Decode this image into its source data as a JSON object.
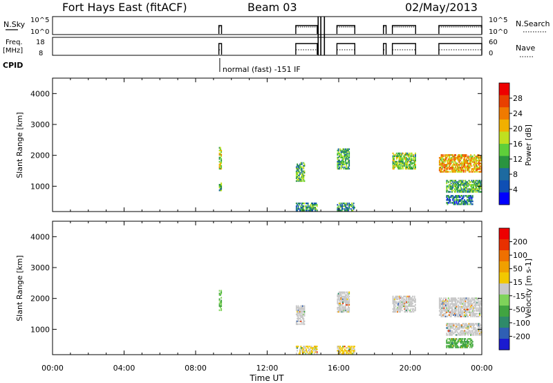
{
  "header": {
    "station": "Fort Hays East (fitACF)",
    "beam": "Beam 03",
    "date": "02/May/2013"
  },
  "status_panels": {
    "nsky": {
      "label": "N.Sky",
      "ticks": [
        "10^5",
        "10^0"
      ],
      "right_ticks": [
        "10^5",
        "10^0"
      ],
      "right_label": "N.Search"
    },
    "freq": {
      "label_top": "Freq.",
      "label_bottom": "[MHz]",
      "ticks": [
        "18",
        "8"
      ],
      "right_ticks": [
        "60",
        "0"
      ],
      "right_label": "Nave"
    },
    "cpid": {
      "label": "CPID",
      "mode_text": "normal (fast) -151 IF",
      "mode_hour": 9.35
    }
  },
  "colors": {
    "power_scale": [
      "#0000ff",
      "#0f4fb4",
      "#1d6aa0",
      "#2a9440",
      "#5fcf3a",
      "#c0e020",
      "#f0b000",
      "#f07a00",
      "#e84000",
      "#ee0000"
    ],
    "velocity_scale": [
      "#1b1bd0",
      "#2f5fb4",
      "#2f8a6a",
      "#41a441",
      "#7fd35a",
      "#c8c8c8",
      "#f2c800",
      "#f0a000",
      "#ef7000",
      "#e83000",
      "#ee0000"
    ]
  },
  "chart_data": [
    {
      "type": "heatmap",
      "name": "power-panel",
      "x": "Time UT",
      "xlabel": "Time UT",
      "ylabel": "Slant Range [km]",
      "xlim": [
        0,
        24
      ],
      "ylim": [
        180,
        4500
      ],
      "x_ticks": [
        "00:00",
        "04:00",
        "08:00",
        "12:00",
        "16:00",
        "20:00",
        "00:00"
      ],
      "y_ticks": [
        1000,
        2000,
        3000,
        4000
      ],
      "colorbar": {
        "label": "Power [dB]",
        "ticks": [
          "28",
          "24",
          "20",
          "16",
          "12",
          "8",
          "4"
        ],
        "range": [
          0,
          30
        ]
      },
      "series": [
        {
          "t0": 9.3,
          "t1": 9.45,
          "r0": 1550,
          "r1": 2250,
          "value": 16
        },
        {
          "t0": 9.3,
          "t1": 9.45,
          "r0": 850,
          "r1": 1100,
          "value": 14
        },
        {
          "t0": 13.6,
          "t1": 14.1,
          "r0": 1150,
          "r1": 1750,
          "value": 12
        },
        {
          "t0": 15.9,
          "t1": 16.6,
          "r0": 1550,
          "r1": 2200,
          "value": 12
        },
        {
          "t0": 19.0,
          "t1": 20.3,
          "r0": 1550,
          "r1": 2050,
          "value": 14
        },
        {
          "t0": 21.6,
          "t1": 24.0,
          "r0": 1450,
          "r1": 2000,
          "value": 20
        },
        {
          "t0": 22.0,
          "t1": 24.0,
          "r0": 800,
          "r1": 1200,
          "value": 12
        },
        {
          "t0": 22.0,
          "t1": 23.5,
          "r0": 400,
          "r1": 700,
          "value": 8
        },
        {
          "t0": 13.6,
          "t1": 14.8,
          "r0": 200,
          "r1": 450,
          "value": 10
        },
        {
          "t0": 15.9,
          "t1": 16.9,
          "r0": 200,
          "r1": 450,
          "value": 10
        }
      ]
    },
    {
      "type": "heatmap",
      "name": "velocity-panel",
      "x": "Time UT",
      "xlabel": "Time UT",
      "ylabel": "Slant Range [km]",
      "xlim": [
        0,
        24
      ],
      "ylim": [
        180,
        4500
      ],
      "x_ticks": [
        "00:00",
        "04:00",
        "08:00",
        "12:00",
        "16:00",
        "20:00",
        "00:00"
      ],
      "y_ticks": [
        1000,
        2000,
        3000,
        4000
      ],
      "colorbar": {
        "label": "Velocity [m s-1]",
        "ticks": [
          "200",
          "100",
          "50",
          "15",
          "-15",
          "-50",
          "-100",
          "-200"
        ],
        "range": [
          -250,
          250
        ]
      },
      "series": [
        {
          "t0": 9.3,
          "t1": 9.45,
          "r0": 1600,
          "r1": 2250,
          "value": -60
        },
        {
          "t0": 13.6,
          "t1": 14.1,
          "r0": 1150,
          "r1": 1750,
          "value": 0
        },
        {
          "t0": 15.9,
          "t1": 16.6,
          "r0": 1550,
          "r1": 2200,
          "value": 0
        },
        {
          "t0": 19.0,
          "t1": 20.3,
          "r0": 1550,
          "r1": 2050,
          "value": 0
        },
        {
          "t0": 21.6,
          "t1": 24.0,
          "r0": 1400,
          "r1": 2000,
          "value": 0
        },
        {
          "t0": 22.0,
          "t1": 24.0,
          "r0": 800,
          "r1": 1200,
          "value": 0
        },
        {
          "t0": 22.0,
          "t1": 23.5,
          "r0": 400,
          "r1": 700,
          "value": -80
        },
        {
          "t0": 13.6,
          "t1": 14.8,
          "r0": 200,
          "r1": 450,
          "value": 30
        },
        {
          "t0": 15.9,
          "t1": 16.9,
          "r0": 200,
          "r1": 450,
          "value": 30
        }
      ]
    }
  ]
}
